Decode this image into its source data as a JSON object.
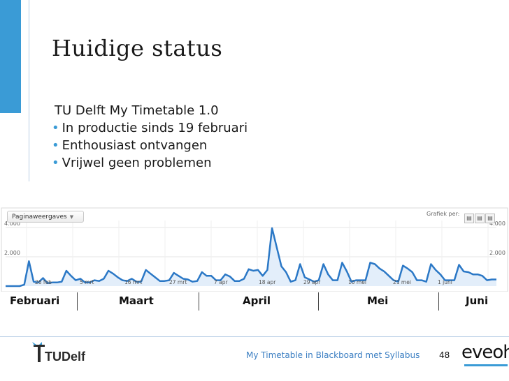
{
  "slide": {
    "title": "Huidige status",
    "lines": [
      {
        "bullet": "",
        "text": "TU Delft My Timetable 1.0"
      },
      {
        "bullet": "•",
        "text": "In productie sinds 19 februari"
      },
      {
        "bullet": "•",
        "text": "Enthousiast ontvangen"
      },
      {
        "bullet": "•",
        "text": "Vrijwel geen problemen"
      }
    ]
  },
  "chart_controls": {
    "metric_dropdown": "Paginaweergaves",
    "graph_by_label": "Grafiek per:"
  },
  "chart_data": {
    "type": "line",
    "ylim": [
      0,
      4000
    ],
    "y_ticks_left": [
      "4.000",
      "2.000"
    ],
    "y_ticks_right": [
      "4.000",
      "2.000"
    ],
    "x_tick_labels": [
      "26 feb",
      "5 mrt",
      "16 mrt",
      "27 mrt",
      "7 apr",
      "18 apr",
      "29 apr",
      "10 mei",
      "21 mei",
      "1 juni"
    ],
    "series": [
      {
        "color": "#2b78c6",
        "values": [
          0,
          0,
          0,
          0,
          100,
          1700,
          300,
          250,
          550,
          200,
          250,
          250,
          300,
          1050,
          700,
          400,
          500,
          250,
          250,
          400,
          350,
          500,
          1050,
          850,
          600,
          400,
          350,
          500,
          300,
          300,
          1100,
          850,
          600,
          350,
          350,
          400,
          900,
          700,
          500,
          450,
          300,
          350,
          950,
          700,
          700,
          400,
          400,
          800,
          650,
          350,
          350,
          500,
          1150,
          1050,
          1100,
          700,
          1100,
          3950,
          2650,
          1350,
          950,
          300,
          400,
          1500,
          600,
          450,
          300,
          400,
          1500,
          800,
          400,
          400,
          1600,
          1000,
          300,
          400,
          400,
          400,
          1600,
          1500,
          1200,
          1000,
          700,
          400,
          300,
          1400,
          1200,
          950,
          400,
          400,
          300,
          1500,
          1100,
          800,
          400,
          400,
          400,
          1450,
          1000,
          950,
          800,
          800,
          700,
          400,
          450,
          450
        ]
      }
    ]
  },
  "months": [
    "Februari",
    "Maart",
    "April",
    "Mei",
    "Juni"
  ],
  "footer": {
    "caption": "My Timetable in Blackboard met Syllabus",
    "page": "48",
    "tu_logo": "TUDelft",
    "brand_logo": "eveoh"
  }
}
